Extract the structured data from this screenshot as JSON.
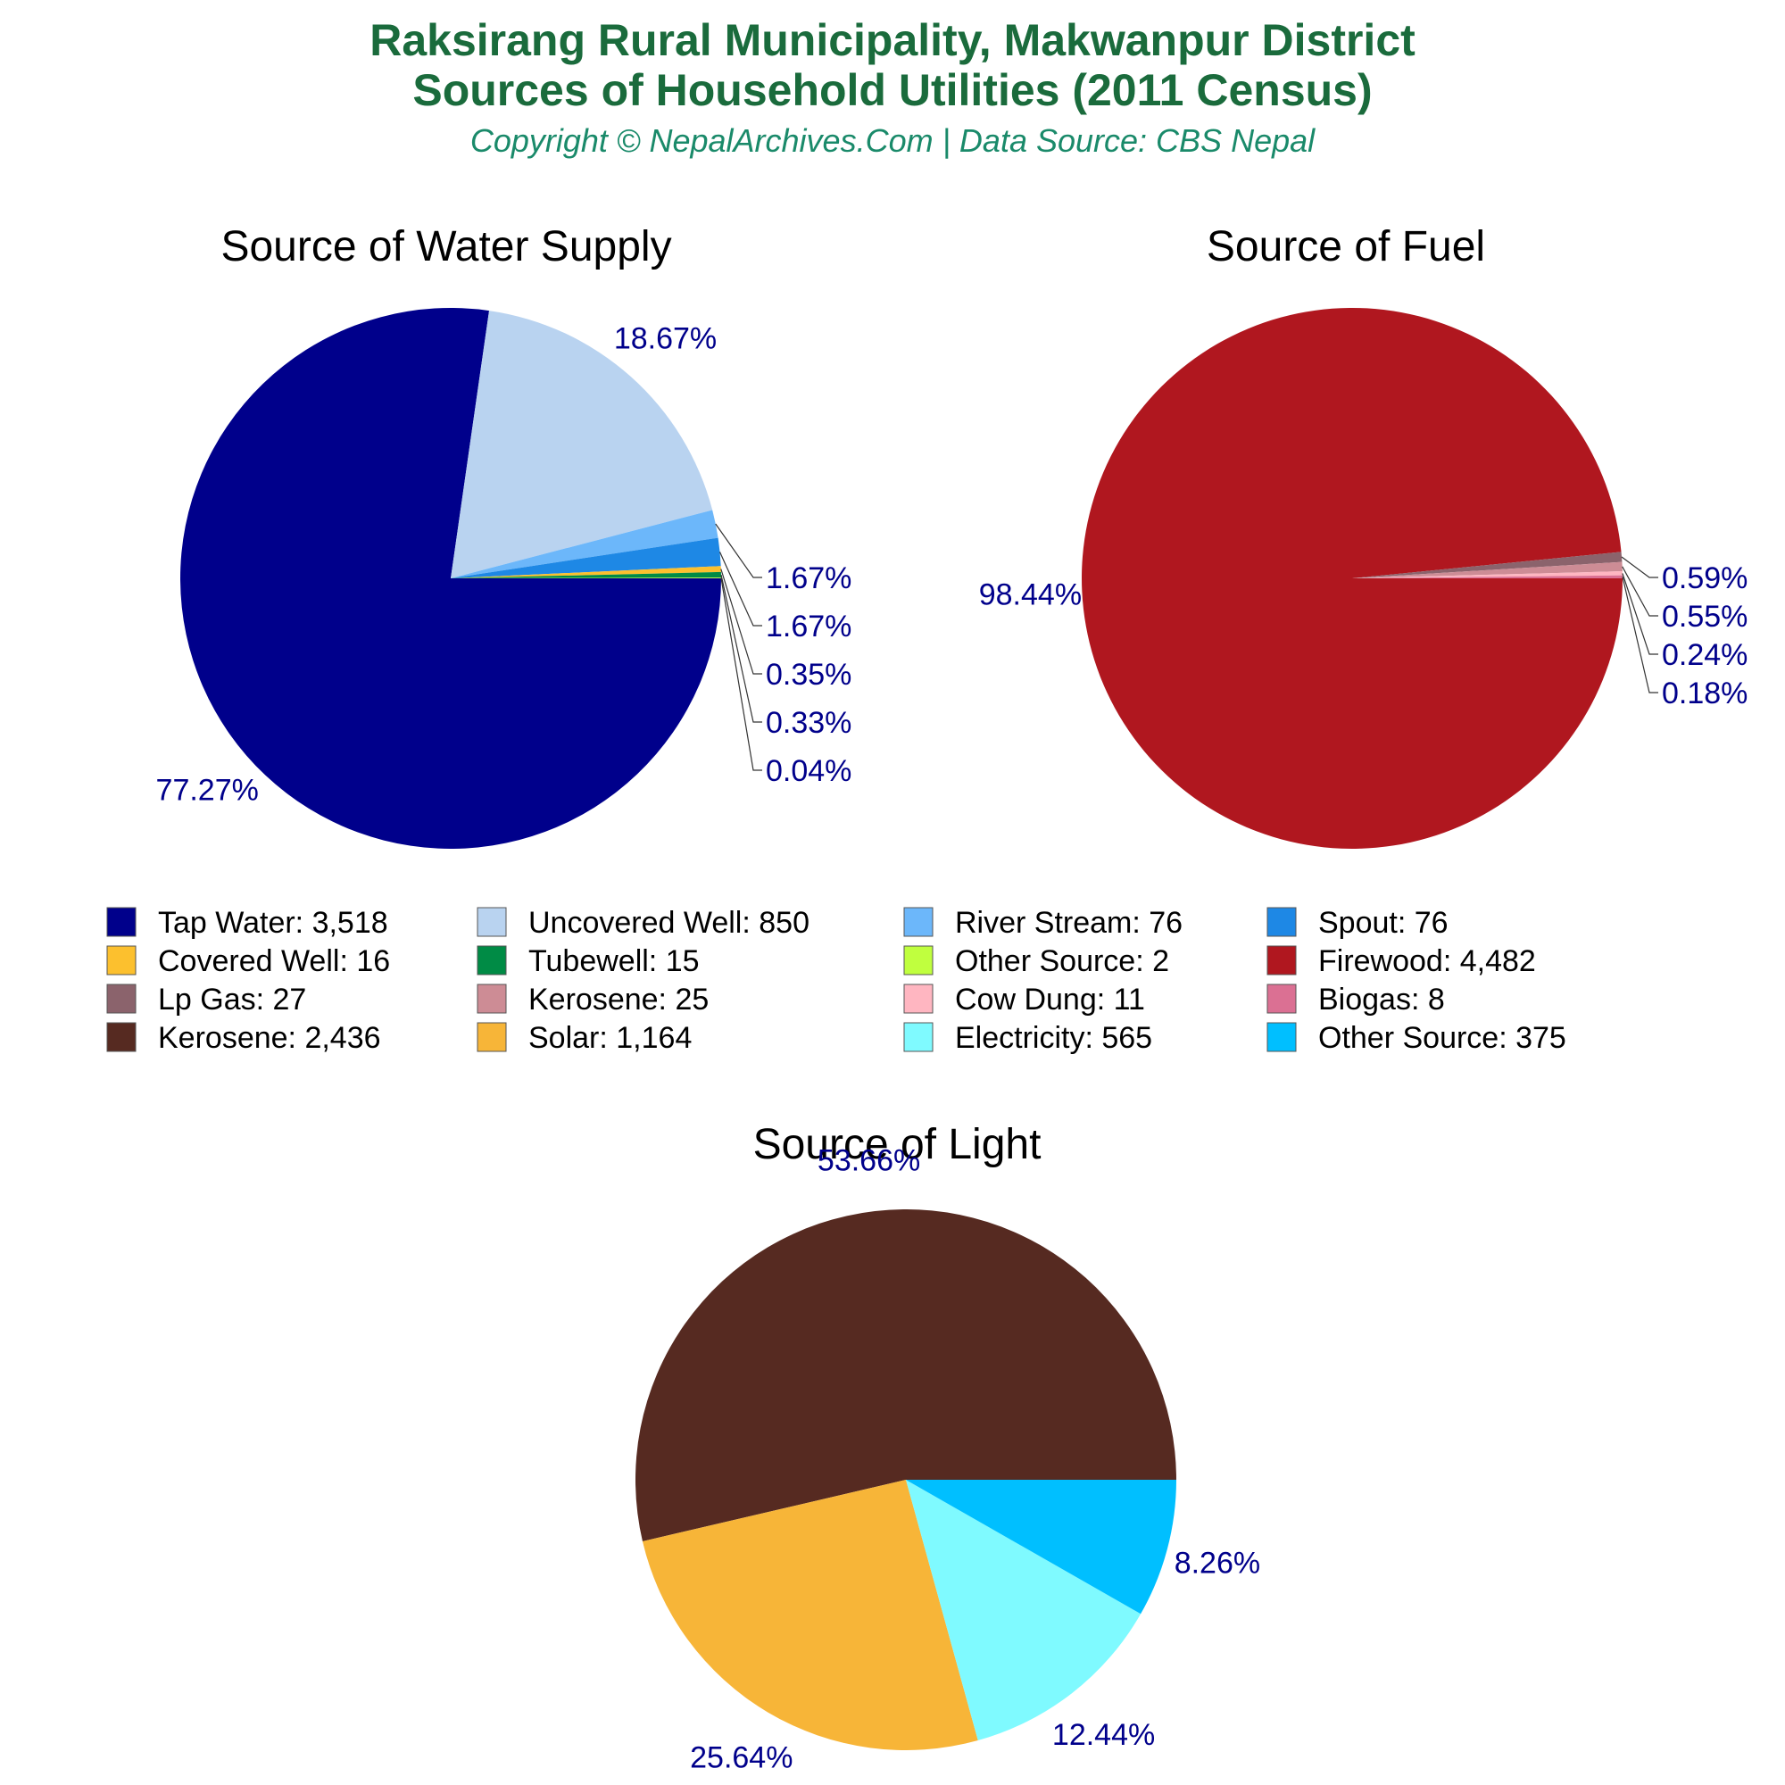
{
  "header": {
    "title_line1": "Raksirang Rural Municipality, Makwanpur District",
    "title_line2": "Sources of Household Utilities (2011 Census)",
    "copyright": "Copyright © NepalArchives.Com | Data Source: CBS Nepal"
  },
  "colors": {
    "title": "#1a6b3c",
    "subtitle": "#1a8a6a",
    "percent_label": "#00008b",
    "leader_line": "#333333"
  },
  "chart_data": [
    {
      "type": "pie",
      "title": "Source of Water Supply",
      "start_angle_deg": 0,
      "direction": "clockwise",
      "slices": [
        {
          "label": "Tap Water",
          "value": 3518,
          "value_text": "3,518",
          "percent": "77.27%",
          "color": "#00008b"
        },
        {
          "label": "Uncovered Well",
          "value": 850,
          "value_text": "850",
          "percent": "18.67%",
          "color": "#b9d3f0"
        },
        {
          "label": "River Stream",
          "value": 76,
          "value_text": "76",
          "percent": "1.67%",
          "color": "#6cb7fa"
        },
        {
          "label": "Spout",
          "value": 76,
          "value_text": "76",
          "percent": "1.67%",
          "color": "#1e88e5"
        },
        {
          "label": "Covered Well",
          "value": 16,
          "value_text": "16",
          "percent": "0.35%",
          "color": "#fcc02e"
        },
        {
          "label": "Tubewell",
          "value": 15,
          "value_text": "15",
          "percent": "0.33%",
          "color": "#008b45"
        },
        {
          "label": "Other Source",
          "value": 2,
          "value_text": "2",
          "percent": "0.04%",
          "color": "#c0ff3e"
        }
      ]
    },
    {
      "type": "pie",
      "title": "Source of Fuel",
      "start_angle_deg": 0,
      "direction": "clockwise",
      "slices": [
        {
          "label": "Firewood",
          "value": 4482,
          "value_text": "4,482",
          "percent": "98.44%",
          "color": "#b0171f"
        },
        {
          "label": "Lp Gas",
          "value": 27,
          "value_text": "27",
          "percent": "0.59%",
          "color": "#8b636c"
        },
        {
          "label": "Kerosene",
          "value": 25,
          "value_text": "25",
          "percent": "0.55%",
          "color": "#cd8c95"
        },
        {
          "label": "Cow Dung",
          "value": 11,
          "value_text": "11",
          "percent": "0.24%",
          "color": "#ffb6c1"
        },
        {
          "label": "Biogas",
          "value": 8,
          "value_text": "8",
          "percent": "0.18%",
          "color": "#db7093"
        }
      ]
    },
    {
      "type": "pie",
      "title": "Source of Light",
      "start_angle_deg": 0,
      "direction": "counterclockwise",
      "slices": [
        {
          "label": "Kerosene",
          "value": 2436,
          "value_text": "2,436",
          "percent": "53.66%",
          "color": "#562a21"
        },
        {
          "label": "Solar",
          "value": 1164,
          "value_text": "1,164",
          "percent": "25.64%",
          "color": "#f7b538"
        },
        {
          "label": "Electricity",
          "value": 565,
          "value_text": "565",
          "percent": "12.44%",
          "color": "#7ffaff"
        },
        {
          "label": "Other Source",
          "value": 375,
          "value_text": "375",
          "percent": "8.26%",
          "color": "#00bfff"
        }
      ]
    }
  ],
  "legend": {
    "columns": 4,
    "items": [
      {
        "text": "Tap Water: 3,518",
        "color": "#00008b"
      },
      {
        "text": "Uncovered Well: 850",
        "color": "#b9d3f0"
      },
      {
        "text": "River Stream: 76",
        "color": "#6cb7fa"
      },
      {
        "text": "Spout: 76",
        "color": "#1e88e5"
      },
      {
        "text": "Covered Well: 16",
        "color": "#fcc02e"
      },
      {
        "text": "Tubewell: 15",
        "color": "#008b45"
      },
      {
        "text": "Other Source: 2",
        "color": "#c0ff3e"
      },
      {
        "text": "Firewood: 4,482",
        "color": "#b0171f"
      },
      {
        "text": "Lp Gas: 27",
        "color": "#8b636c"
      },
      {
        "text": "Kerosene: 25",
        "color": "#cd8c95"
      },
      {
        "text": "Cow Dung: 11",
        "color": "#ffb6c1"
      },
      {
        "text": "Biogas: 8",
        "color": "#db7093"
      },
      {
        "text": "Kerosene: 2,436",
        "color": "#562a21"
      },
      {
        "text": "Solar: 1,164",
        "color": "#f7b538"
      },
      {
        "text": "Electricity: 565",
        "color": "#7ffaff"
      },
      {
        "text": "Other Source: 375",
        "color": "#00bfff"
      }
    ]
  }
}
